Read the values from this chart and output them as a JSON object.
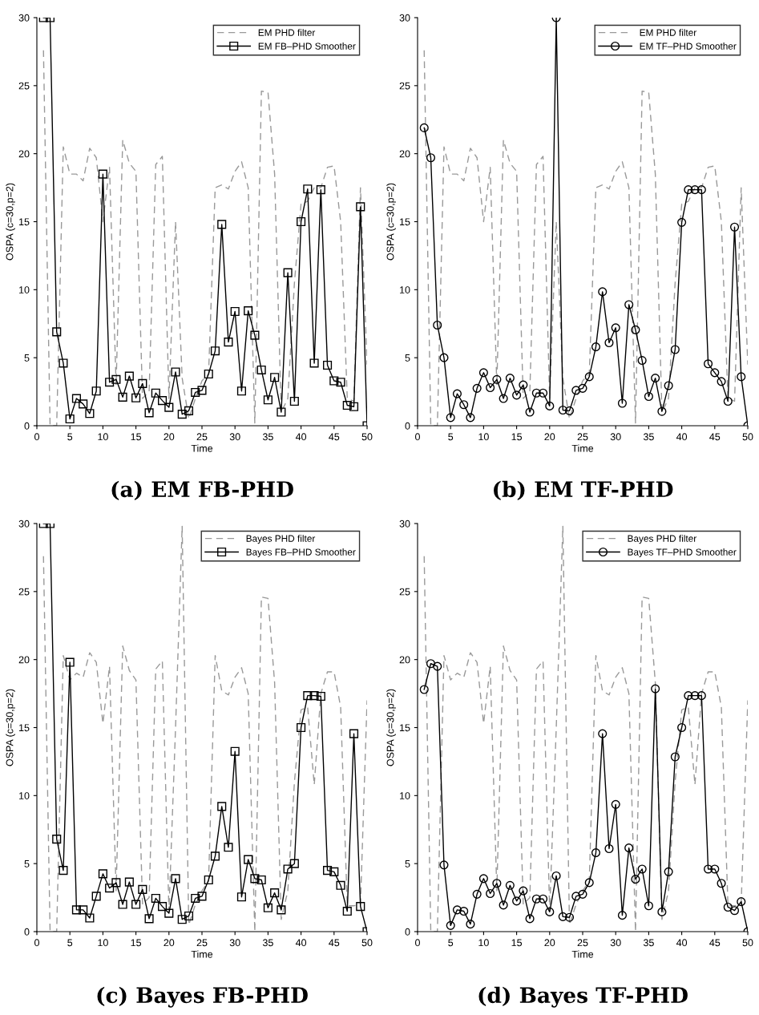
{
  "chart_data": [
    {
      "type": "line",
      "title": "(a) EM FB-PHD",
      "xlabel": "Time",
      "ylabel": "OSPA (c=30,p=2)",
      "xlim": [
        0,
        50
      ],
      "ylim": [
        0,
        30
      ],
      "xticks": [
        0,
        5,
        10,
        15,
        20,
        25,
        30,
        35,
        40,
        45,
        50
      ],
      "yticks": [
        0,
        5,
        10,
        15,
        20,
        25,
        30
      ],
      "legend": "top right",
      "x": [
        1,
        2,
        3,
        4,
        5,
        6,
        7,
        8,
        9,
        10,
        11,
        12,
        13,
        14,
        15,
        16,
        17,
        18,
        19,
        20,
        21,
        22,
        23,
        24,
        25,
        26,
        27,
        28,
        29,
        30,
        31,
        32,
        33,
        34,
        35,
        36,
        37,
        38,
        39,
        40,
        41,
        42,
        43,
        44,
        45,
        46,
        47,
        48,
        49,
        50
      ],
      "series": [
        {
          "name": "EM PHD filter",
          "color": "#999999",
          "line_style": "dashed",
          "marker": "none",
          "values": [
            27.6,
            0,
            0,
            20.5,
            18.5,
            18.5,
            18.0,
            20.4,
            19.7,
            15.0,
            19.0,
            3.0,
            21.0,
            19.3,
            18.7,
            2.0,
            2.5,
            19.2,
            19.8,
            2.0,
            15.0,
            3.5,
            0.5,
            2.0,
            3.3,
            3.8,
            17.5,
            17.7,
            17.4,
            18.7,
            19.4,
            17.5,
            0.2,
            24.6,
            24.5,
            18.5,
            1.0,
            2.0,
            10.5,
            16.3,
            16.5,
            17.5,
            17.5,
            19.0,
            19.1,
            15.0,
            2.0,
            1.8,
            17.5,
            4.5
          ]
        },
        {
          "name": "EM FB–PHD Smoother",
          "color": "#000000",
          "line_style": "solid",
          "marker": "square",
          "values": [
            30,
            30,
            6.9,
            4.6,
            0.5,
            2.0,
            1.6,
            0.9,
            2.55,
            18.5,
            3.2,
            3.4,
            2.1,
            3.65,
            2.05,
            3.1,
            0.95,
            2.4,
            1.85,
            1.35,
            3.95,
            0.85,
            1.1,
            2.45,
            2.6,
            3.8,
            5.5,
            14.8,
            6.15,
            8.4,
            2.55,
            8.45,
            6.65,
            4.1,
            1.9,
            3.55,
            1.0,
            11.25,
            1.8,
            15.0,
            17.4,
            4.6,
            17.35,
            4.45,
            3.3,
            3.2,
            1.5,
            1.4,
            16.1,
            0
          ]
        }
      ]
    },
    {
      "type": "line",
      "title": "(b) EM TF-PHD",
      "xlabel": "Time",
      "ylabel": "OSPA (c=30,p=2)",
      "xlim": [
        0,
        50
      ],
      "ylim": [
        0,
        30
      ],
      "xticks": [
        0,
        5,
        10,
        15,
        20,
        25,
        30,
        35,
        40,
        45,
        50
      ],
      "yticks": [
        0,
        5,
        10,
        15,
        20,
        25,
        30
      ],
      "legend": "top right",
      "x": [
        1,
        2,
        3,
        4,
        5,
        6,
        7,
        8,
        9,
        10,
        11,
        12,
        13,
        14,
        15,
        16,
        17,
        18,
        19,
        20,
        21,
        22,
        23,
        24,
        25,
        26,
        27,
        28,
        29,
        30,
        31,
        32,
        33,
        34,
        35,
        36,
        37,
        38,
        39,
        40,
        41,
        42,
        43,
        44,
        45,
        46,
        47,
        48,
        49,
        50
      ],
      "series": [
        {
          "name": "EM PHD filter",
          "color": "#999999",
          "line_style": "dashed",
          "marker": "none",
          "values": [
            27.6,
            0,
            0,
            20.5,
            18.5,
            18.5,
            18.0,
            20.4,
            19.7,
            15.0,
            19.0,
            3.0,
            21.0,
            19.3,
            18.7,
            2.0,
            2.5,
            19.2,
            19.8,
            2.0,
            15.0,
            3.5,
            0.5,
            2.0,
            3.3,
            3.8,
            17.5,
            17.7,
            17.4,
            18.7,
            19.4,
            17.5,
            0.2,
            24.6,
            24.5,
            18.5,
            1.0,
            2.0,
            10.5,
            16.3,
            16.5,
            17.5,
            17.5,
            19.0,
            19.1,
            15.0,
            2.0,
            1.8,
            17.5,
            4.5
          ]
        },
        {
          "name": "EM TF–PHD Smoother",
          "color": "#000000",
          "line_style": "solid",
          "marker": "circle",
          "values": [
            21.9,
            19.7,
            7.4,
            5.0,
            0.6,
            2.35,
            1.55,
            0.6,
            2.75,
            3.9,
            2.8,
            3.4,
            2.0,
            3.5,
            2.25,
            3.0,
            1.0,
            2.4,
            2.4,
            1.45,
            30,
            1.15,
            1.1,
            2.6,
            2.75,
            3.6,
            5.8,
            9.85,
            6.1,
            7.2,
            1.65,
            8.9,
            7.05,
            4.8,
            2.15,
            3.5,
            1.05,
            2.95,
            5.6,
            14.95,
            17.35,
            17.35,
            17.35,
            4.55,
            3.9,
            3.25,
            1.8,
            14.6,
            3.6,
            0
          ]
        }
      ]
    },
    {
      "type": "line",
      "title": "(c) Bayes FB-PHD",
      "xlabel": "Time",
      "ylabel": "OSPA (c=30,p=2)",
      "xlim": [
        0,
        50
      ],
      "ylim": [
        0,
        30
      ],
      "xticks": [
        0,
        5,
        10,
        15,
        20,
        25,
        30,
        35,
        40,
        45,
        50
      ],
      "yticks": [
        0,
        5,
        10,
        15,
        20,
        25,
        30
      ],
      "legend": "top right",
      "x": [
        1,
        2,
        3,
        4,
        5,
        6,
        7,
        8,
        9,
        10,
        11,
        12,
        13,
        14,
        15,
        16,
        17,
        18,
        19,
        20,
        21,
        22,
        23,
        24,
        25,
        26,
        27,
        28,
        29,
        30,
        31,
        32,
        33,
        34,
        35,
        36,
        37,
        38,
        39,
        40,
        41,
        42,
        43,
        44,
        45,
        46,
        47,
        48,
        49,
        50
      ],
      "series": [
        {
          "name": "Bayes PHD filter",
          "color": "#999999",
          "line_style": "dashed",
          "marker": "none",
          "values": [
            27.6,
            0,
            0,
            20.3,
            18.5,
            19.0,
            18.7,
            20.5,
            19.8,
            15.3,
            19.5,
            3.0,
            21.0,
            19.2,
            18.5,
            2.0,
            2.5,
            19.3,
            19.9,
            1.5,
            15.0,
            29.8,
            0.5,
            2.0,
            3.0,
            3.7,
            20.3,
            17.7,
            17.4,
            18.7,
            19.4,
            17.5,
            0,
            24.6,
            24.5,
            18.3,
            0.9,
            3.0,
            11.0,
            16.3,
            16.5,
            10.8,
            17.5,
            19.1,
            19.1,
            16.5,
            1.9,
            1.9,
            2.0,
            17.0
          ]
        },
        {
          "name": "Bayes FB–PHD Smoother",
          "color": "#000000",
          "line_style": "solid",
          "marker": "square",
          "values": [
            30,
            30,
            6.8,
            4.5,
            19.8,
            1.6,
            1.6,
            1.0,
            2.6,
            4.25,
            3.2,
            3.6,
            2.0,
            3.65,
            2.0,
            3.1,
            0.95,
            2.45,
            1.85,
            1.35,
            3.9,
            0.9,
            1.15,
            2.45,
            2.6,
            3.8,
            5.55,
            9.2,
            6.2,
            13.25,
            2.55,
            5.3,
            3.9,
            3.8,
            1.75,
            2.85,
            1.6,
            4.6,
            5.0,
            15.0,
            17.35,
            17.35,
            17.3,
            4.5,
            4.4,
            3.4,
            1.5,
            14.55,
            1.85,
            0
          ]
        }
      ]
    },
    {
      "type": "line",
      "title": "(d) Bayes TF-PHD",
      "xlabel": "Time",
      "ylabel": "OSPA (c=30,p=2)",
      "xlim": [
        0,
        50
      ],
      "ylim": [
        0,
        30
      ],
      "xticks": [
        0,
        5,
        10,
        15,
        20,
        25,
        30,
        35,
        40,
        45,
        50
      ],
      "yticks": [
        0,
        5,
        10,
        15,
        20,
        25,
        30
      ],
      "legend": "top right",
      "x": [
        1,
        2,
        3,
        4,
        5,
        6,
        7,
        8,
        9,
        10,
        11,
        12,
        13,
        14,
        15,
        16,
        17,
        18,
        19,
        20,
        21,
        22,
        23,
        24,
        25,
        26,
        27,
        28,
        29,
        30,
        31,
        32,
        33,
        34,
        35,
        36,
        37,
        38,
        39,
        40,
        41,
        42,
        43,
        44,
        45,
        46,
        47,
        48,
        49,
        50
      ],
      "series": [
        {
          "name": "Bayes PHD filter",
          "color": "#999999",
          "line_style": "dashed",
          "marker": "none",
          "values": [
            27.6,
            0,
            0,
            20.3,
            18.5,
            19.0,
            18.7,
            20.5,
            19.8,
            15.3,
            19.5,
            3.0,
            21.0,
            19.2,
            18.5,
            2.0,
            2.5,
            19.3,
            19.9,
            1.5,
            15.0,
            29.8,
            0.5,
            2.0,
            3.0,
            3.7,
            20.3,
            17.7,
            17.4,
            18.7,
            19.4,
            17.5,
            0,
            24.6,
            24.5,
            18.3,
            0.9,
            3.0,
            11.0,
            16.3,
            16.5,
            10.8,
            17.5,
            19.1,
            19.1,
            16.5,
            1.9,
            1.9,
            2.0,
            17.0
          ]
        },
        {
          "name": "Bayes TF–PHD Smoother",
          "color": "#000000",
          "line_style": "solid",
          "marker": "circle",
          "values": [
            17.8,
            19.7,
            19.5,
            4.9,
            0.45,
            1.6,
            1.5,
            0.55,
            2.75,
            3.9,
            2.8,
            3.55,
            1.95,
            3.4,
            2.25,
            3.0,
            0.95,
            2.4,
            2.4,
            1.45,
            4.1,
            1.1,
            1.05,
            2.6,
            2.75,
            3.6,
            5.8,
            14.55,
            6.1,
            9.35,
            1.2,
            6.15,
            3.85,
            4.6,
            1.9,
            17.85,
            1.45,
            4.4,
            12.85,
            15.0,
            17.35,
            17.35,
            17.35,
            4.6,
            4.6,
            3.55,
            1.8,
            1.55,
            2.2,
            0
          ]
        }
      ]
    }
  ]
}
